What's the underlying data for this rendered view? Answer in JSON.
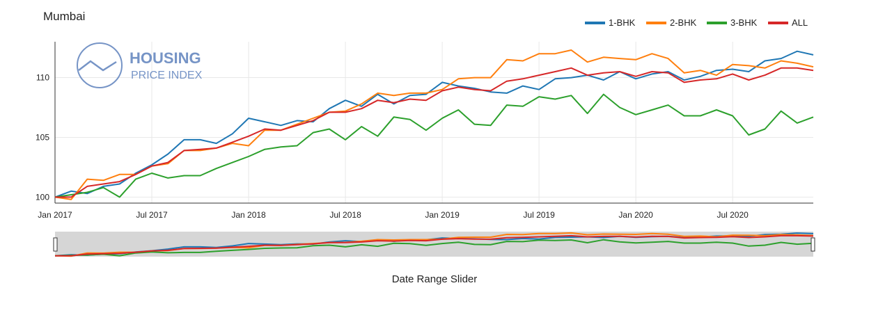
{
  "title": "Mumbai",
  "logo": {
    "line1": "HOUSING",
    "line2": "PRICE INDEX",
    "color": "#6f8fc4"
  },
  "slider_caption": "Date Range Slider",
  "chart_data": {
    "type": "line",
    "x": [
      "2017-01",
      "2017-02",
      "2017-03",
      "2017-04",
      "2017-05",
      "2017-06",
      "2017-07",
      "2017-08",
      "2017-09",
      "2017-10",
      "2017-11",
      "2017-12",
      "2018-01",
      "2018-02",
      "2018-03",
      "2018-04",
      "2018-05",
      "2018-06",
      "2018-07",
      "2018-08",
      "2018-09",
      "2018-10",
      "2018-11",
      "2018-12",
      "2019-01",
      "2019-02",
      "2019-03",
      "2019-04",
      "2019-05",
      "2019-06",
      "2019-07",
      "2019-08",
      "2019-09",
      "2019-10",
      "2019-11",
      "2019-12",
      "2020-01",
      "2020-02",
      "2020-03",
      "2020-04",
      "2020-05",
      "2020-06",
      "2020-07",
      "2020-08",
      "2020-09",
      "2020-10",
      "2020-11",
      "2020-12"
    ],
    "x_ticks": [
      {
        "date": "2017-01",
        "label": "Jan 2017"
      },
      {
        "date": "2017-07",
        "label": "Jul 2017"
      },
      {
        "date": "2018-01",
        "label": "Jan 2018"
      },
      {
        "date": "2018-07",
        "label": "Jul 2018"
      },
      {
        "date": "2019-01",
        "label": "Jan 2019"
      },
      {
        "date": "2019-07",
        "label": "Jul 2019"
      },
      {
        "date": "2020-01",
        "label": "Jan 2020"
      },
      {
        "date": "2020-07",
        "label": "Jul 2020"
      }
    ],
    "y_ticks": [
      100,
      105,
      110
    ],
    "ylim": [
      99.5,
      113.0
    ],
    "grid": true,
    "legend_position": "top-right",
    "series": [
      {
        "name": "1-BHK",
        "color": "#1f77b4",
        "values": [
          100.0,
          100.5,
          100.3,
          100.9,
          101.1,
          102.0,
          102.7,
          103.6,
          104.8,
          104.8,
          104.5,
          105.3,
          106.6,
          106.3,
          106.0,
          106.4,
          106.3,
          107.4,
          108.1,
          107.6,
          108.6,
          107.8,
          108.5,
          108.6,
          109.6,
          109.3,
          109.1,
          108.8,
          108.7,
          109.3,
          109.0,
          109.9,
          110.0,
          110.2,
          109.8,
          110.5,
          109.9,
          110.3,
          110.5,
          109.8,
          110.1,
          110.6,
          110.7,
          110.5,
          111.4,
          111.6,
          112.2,
          111.9
        ]
      },
      {
        "name": "2-BHK",
        "color": "#ff7f0e",
        "values": [
          100.0,
          99.8,
          101.5,
          101.4,
          101.9,
          101.9,
          102.6,
          102.8,
          103.9,
          103.9,
          104.1,
          104.5,
          104.3,
          105.6,
          105.6,
          106.1,
          106.6,
          107.1,
          107.2,
          107.8,
          108.7,
          108.5,
          108.7,
          108.7,
          109.0,
          109.9,
          110.0,
          110.0,
          111.5,
          111.4,
          112.0,
          112.0,
          112.3,
          111.3,
          111.7,
          111.6,
          111.5,
          112.0,
          111.6,
          110.4,
          110.6,
          110.2,
          111.1,
          111.0,
          110.8,
          111.4,
          111.2,
          110.9
        ]
      },
      {
        "name": "3-BHK",
        "color": "#2ca02c",
        "values": [
          100.0,
          100.2,
          100.4,
          100.8,
          100.0,
          101.5,
          102.0,
          101.6,
          101.8,
          101.8,
          102.4,
          102.9,
          103.4,
          104.0,
          104.2,
          104.3,
          105.4,
          105.7,
          104.8,
          105.9,
          105.1,
          106.7,
          106.5,
          105.6,
          106.6,
          107.3,
          106.1,
          106.0,
          107.7,
          107.6,
          108.4,
          108.2,
          108.5,
          107.0,
          108.6,
          107.5,
          106.9,
          107.3,
          107.7,
          106.8,
          106.8,
          107.3,
          106.8,
          105.2,
          105.7,
          107.2,
          106.2,
          106.7
        ]
      },
      {
        "name": "ALL",
        "color": "#d62728",
        "values": [
          100.0,
          100.0,
          100.9,
          101.1,
          101.3,
          101.9,
          102.6,
          102.9,
          103.9,
          104.0,
          104.1,
          104.6,
          105.1,
          105.7,
          105.6,
          106.0,
          106.4,
          107.1,
          107.1,
          107.4,
          108.1,
          107.9,
          108.2,
          108.1,
          108.9,
          109.2,
          109.0,
          108.9,
          109.7,
          109.9,
          110.2,
          110.5,
          110.8,
          110.2,
          110.4,
          110.5,
          110.1,
          110.5,
          110.4,
          109.6,
          109.8,
          109.9,
          110.3,
          109.8,
          110.2,
          110.8,
          110.8,
          110.6
        ]
      }
    ]
  }
}
